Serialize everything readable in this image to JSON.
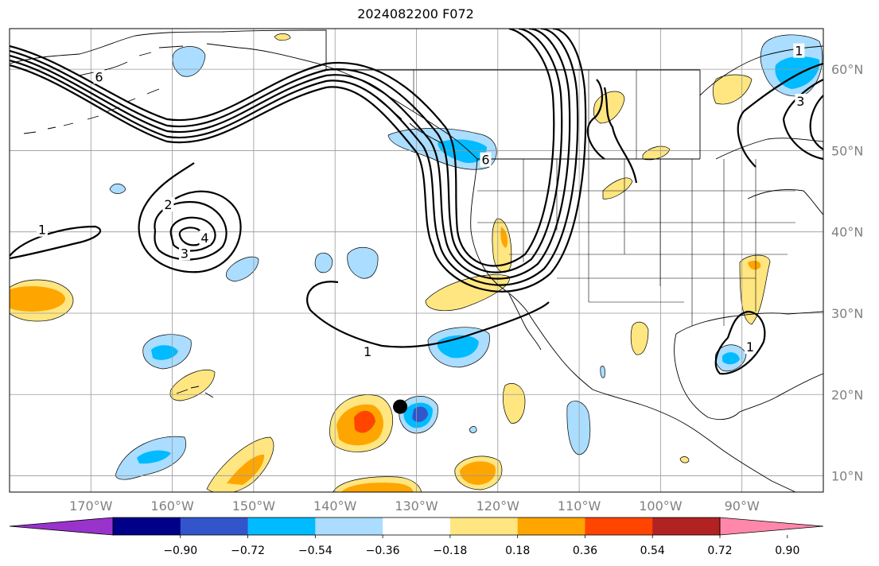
{
  "title": "2024082200 F072",
  "map": {
    "extent": {
      "lon": [
        -180,
        -80
      ],
      "lat": [
        8,
        65
      ]
    },
    "lon_ticks": [
      {
        "value": -170,
        "label": "170°W"
      },
      {
        "value": -160,
        "label": "160°W"
      },
      {
        "value": -150,
        "label": "150°W"
      },
      {
        "value": -140,
        "label": "140°W"
      },
      {
        "value": -130,
        "label": "130°W"
      },
      {
        "value": -120,
        "label": "120°W"
      },
      {
        "value": -110,
        "label": "110°W"
      },
      {
        "value": -100,
        "label": "100°W"
      },
      {
        "value": -90,
        "label": "90°W"
      }
    ],
    "lat_ticks": [
      {
        "value": 60,
        "label": "60°N"
      },
      {
        "value": 50,
        "label": "50°N"
      },
      {
        "value": 40,
        "label": "40°N"
      },
      {
        "value": 30,
        "label": "30°N"
      },
      {
        "value": 20,
        "label": "20°N"
      },
      {
        "value": 10,
        "label": "10°N"
      }
    ],
    "gridlines": true,
    "marker": {
      "lon": -132,
      "lat": 18.5,
      "color": "#000000"
    },
    "contour_labels": [
      {
        "text": "1",
        "lon": -176,
        "lat": 40.2
      },
      {
        "text": "2",
        "lon": -160.5,
        "lat": 43.3
      },
      {
        "text": "3",
        "lon": -158.5,
        "lat": 37.3
      },
      {
        "text": "4",
        "lon": -156,
        "lat": 39.2
      },
      {
        "text": "6",
        "lon": -169,
        "lat": 59
      },
      {
        "text": "1",
        "lon": -136,
        "lat": 25.2
      },
      {
        "text": "1",
        "lon": -89,
        "lat": 25.8
      },
      {
        "text": "1",
        "lon": -83,
        "lat": 62.2
      },
      {
        "text": "3",
        "lon": -82.8,
        "lat": 56
      },
      {
        "text": "6",
        "lon": -121.5,
        "lat": 48.8
      }
    ]
  },
  "colorbar": {
    "colors": [
      "#9933cc",
      "#000088",
      "#3355cc",
      "#00bbff",
      "#aaddff",
      "#ffffff",
      "#ffe680",
      "#ffa500",
      "#ff4500",
      "#b22222",
      "#ff88aa"
    ],
    "boundaries": [
      -0.9,
      -0.72,
      -0.54,
      -0.36,
      -0.18,
      0.18,
      0.36,
      0.54,
      0.72,
      0.9
    ],
    "labels": [
      "−0.90",
      "−0.72",
      "−0.54",
      "−0.36",
      "−0.18",
      "0.18",
      "0.36",
      "0.54",
      "0.72",
      "0.90"
    ]
  }
}
